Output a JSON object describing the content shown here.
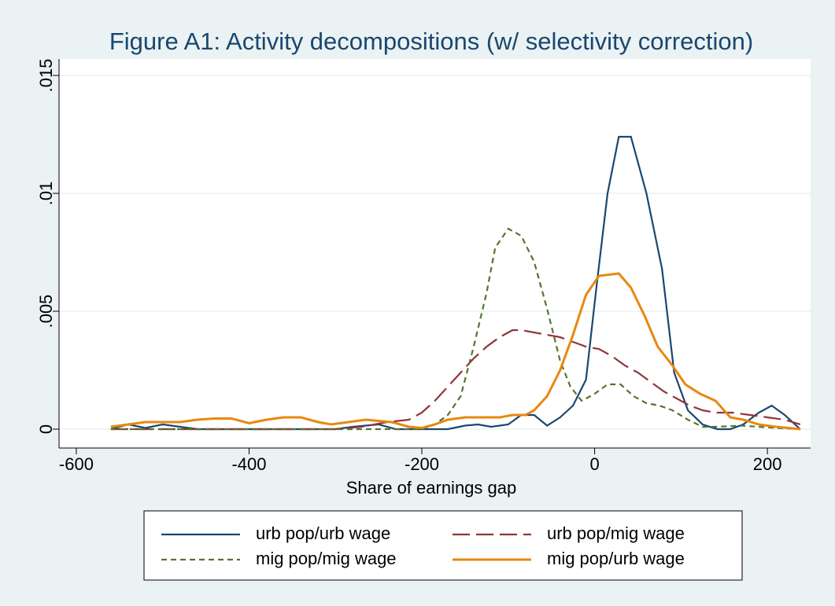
{
  "chart_data": {
    "type": "line",
    "title": "Figure A1: Activity decompositions (w/ selectivity correction)",
    "x_label": "Share of earnings gap",
    "xlim": [
      -620,
      250
    ],
    "ylim": [
      -0.0008,
      0.0157
    ],
    "xticks": [
      -600,
      -400,
      -200,
      0,
      200
    ],
    "yticks": [
      0,
      {
        "value": 0.005,
        "label": ".005"
      },
      {
        "value": 0.01,
        "label": ".01"
      },
      {
        "value": 0.015,
        "label": ".015"
      }
    ],
    "grid": true,
    "legend_position": "bottom",
    "series": [
      {
        "name": "urb pop/urb wage",
        "color": "#1a476f",
        "dash": "solid",
        "x": [
          -560,
          -540,
          -520,
          -500,
          -480,
          -460,
          -300,
          -280,
          -250,
          -230,
          -200,
          -170,
          -150,
          -135,
          -120,
          -100,
          -85,
          -70,
          -55,
          -40,
          -25,
          -10,
          2,
          15,
          28,
          42,
          60,
          78,
          92,
          108,
          125,
          142,
          157,
          172,
          190,
          205,
          220,
          238
        ],
        "values": [
          0,
          0.0002,
          5e-05,
          0.0002,
          0.0001,
          0,
          0,
          0.0001,
          0.0002,
          0,
          0,
          0,
          0.00015,
          0.0002,
          0.0001,
          0.0002,
          0.0006,
          0.0006,
          0.00015,
          0.0005,
          0.001,
          0.0021,
          0.006,
          0.01,
          0.0124,
          0.0124,
          0.01,
          0.0068,
          0.0024,
          0.0008,
          0.0002,
          0,
          0,
          0.0002,
          0.0007,
          0.001,
          0.0006,
          0
        ]
      },
      {
        "name": "urb pop/mig wage",
        "color": "#90353b",
        "dash": "long",
        "x": [
          -560,
          -300,
          -270,
          -240,
          -215,
          -200,
          -185,
          -170,
          -155,
          -140,
          -125,
          -110,
          -95,
          -85,
          -70,
          -55,
          -40,
          -25,
          -10,
          5,
          20,
          35,
          50,
          65,
          80,
          95,
          110,
          125,
          140,
          160,
          180,
          200,
          220,
          238
        ],
        "values": [
          0,
          0,
          0.0001,
          0.0003,
          0.0004,
          0.0007,
          0.0012,
          0.0018,
          0.0024,
          0.003,
          0.0035,
          0.0039,
          0.0042,
          0.0042,
          0.0041,
          0.004,
          0.0039,
          0.0037,
          0.0035,
          0.0034,
          0.0031,
          0.0027,
          0.0024,
          0.002,
          0.0016,
          0.0013,
          0.001,
          0.0008,
          0.0007,
          0.0007,
          0.0006,
          0.0005,
          0.0004,
          0.0002
        ]
      },
      {
        "name": "mig pop/mig wage",
        "color": "#55752f",
        "dash": "short",
        "x": [
          -560,
          -200,
          -185,
          -170,
          -155,
          -140,
          -125,
          -115,
          -100,
          -85,
          -70,
          -55,
          -40,
          -28,
          -15,
          0,
          15,
          30,
          45,
          60,
          75,
          90,
          108,
          125,
          140,
          170,
          190,
          210,
          238
        ],
        "values": [
          0,
          0,
          0.0002,
          0.0006,
          0.0014,
          0.0035,
          0.0058,
          0.0077,
          0.0085,
          0.0082,
          0.0071,
          0.0051,
          0.0029,
          0.0018,
          0.0012,
          0.0015,
          0.0019,
          0.0019,
          0.0014,
          0.0011,
          0.001,
          0.0008,
          0.0004,
          0.0001,
          0.0001,
          0.00015,
          0.0001,
          5e-05,
          0
        ]
      },
      {
        "name": "mig pop/urb wage",
        "color": "#e8880e",
        "dash": "solid",
        "x": [
          -560,
          -540,
          -520,
          -500,
          -480,
          -460,
          -440,
          -420,
          -400,
          -380,
          -360,
          -340,
          -320,
          -305,
          -285,
          -265,
          -250,
          -235,
          -215,
          -200,
          -185,
          -170,
          -150,
          -130,
          -110,
          -95,
          -80,
          -70,
          -55,
          -40,
          -25,
          -10,
          5,
          28,
          42,
          58,
          73,
          90,
          105,
          122,
          140,
          157,
          172,
          190,
          210,
          238
        ],
        "values": [
          0.0001,
          0.0002,
          0.0003,
          0.0003,
          0.0003,
          0.0004,
          0.00045,
          0.00045,
          0.00025,
          0.0004,
          0.0005,
          0.0005,
          0.0003,
          0.0002,
          0.0003,
          0.0004,
          0.00035,
          0.0003,
          0.0001,
          5e-05,
          0.0002,
          0.0004,
          0.0005,
          0.0005,
          0.0005,
          0.0006,
          0.0006,
          0.0008,
          0.0014,
          0.0025,
          0.004,
          0.0057,
          0.0065,
          0.0066,
          0.006,
          0.0048,
          0.0035,
          0.0027,
          0.0019,
          0.0015,
          0.0012,
          0.0005,
          0.0004,
          0.0002,
          0.0001,
          0
        ]
      }
    ]
  }
}
